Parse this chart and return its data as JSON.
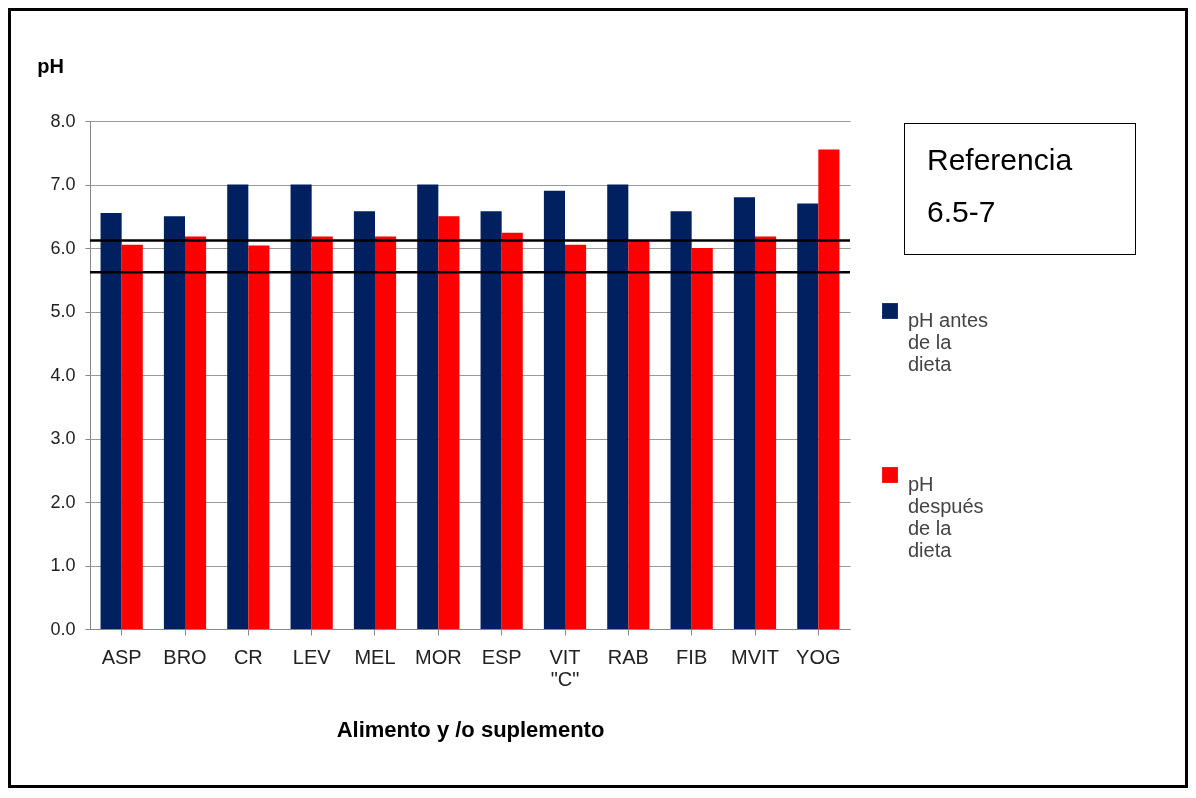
{
  "chart_data": {
    "type": "bar",
    "xlabel": "Alimento y /o suplemento",
    "ylabel": "pH",
    "categories": [
      "ASP",
      "BRO",
      "CR",
      "LEV",
      "MEL",
      "MOR",
      "ESP",
      "VIT \"C\"",
      "RAB",
      "FIB",
      "MVIT",
      "YOG"
    ],
    "series": [
      {
        "name": "pH antes de la dieta",
        "color": "#002060",
        "values": [
          6.55,
          6.5,
          7.0,
          7.0,
          6.58,
          7.0,
          6.58,
          6.9,
          7.0,
          6.58,
          6.8,
          6.7
        ]
      },
      {
        "name": "pH después de la dieta",
        "color": "#ff0000",
        "values": [
          6.05,
          6.18,
          6.04,
          6.18,
          6.18,
          6.5,
          6.24,
          6.05,
          6.12,
          6.0,
          6.18,
          7.55
        ]
      }
    ],
    "ylim": [
      0,
      8
    ],
    "yticks": [
      {
        "value": 0,
        "label": "0.0"
      },
      {
        "value": 1,
        "label": "1.0"
      },
      {
        "value": 2,
        "label": "2.0"
      },
      {
        "value": 3,
        "label": "3.0"
      },
      {
        "value": 4,
        "label": "4.0"
      },
      {
        "value": 5,
        "label": "5.0"
      },
      {
        "value": 6,
        "label": "6.0"
      },
      {
        "value": 7,
        "label": "7.0"
      },
      {
        "value": 8,
        "label": "8.0"
      }
    ],
    "ref_lines": [
      {
        "axis": "y",
        "value": 6.12,
        "color": "#000000"
      },
      {
        "axis": "y",
        "value": 5.62,
        "color": "#000000"
      }
    ],
    "annotations": [
      "Referencia\n6.5-7"
    ],
    "grid": "y",
    "legend": "right"
  }
}
